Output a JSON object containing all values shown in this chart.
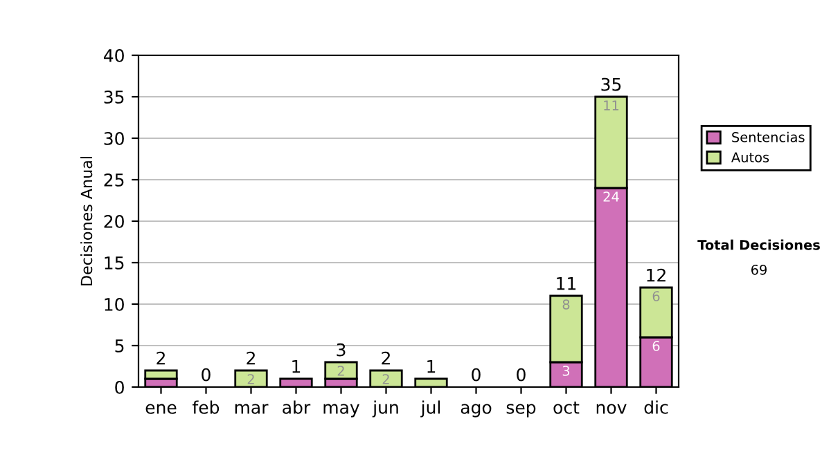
{
  "chart_data": {
    "type": "bar",
    "stacked": true,
    "ylabel": "Decisiones Anual",
    "categories": [
      "ene",
      "feb",
      "mar",
      "abr",
      "may",
      "jun",
      "jul",
      "ago",
      "sep",
      "oct",
      "nov",
      "dic"
    ],
    "series": [
      {
        "name": "Sentencias",
        "color": "#d070b8",
        "values": [
          1,
          0,
          0,
          1,
          1,
          0,
          0,
          0,
          0,
          3,
          24,
          6
        ],
        "value_labels": [
          null,
          null,
          null,
          null,
          null,
          null,
          null,
          null,
          null,
          "3",
          "24",
          "6"
        ]
      },
      {
        "name": "Autos",
        "color": "#cce696",
        "values": [
          1,
          0,
          2,
          0,
          2,
          2,
          1,
          0,
          0,
          8,
          11,
          6
        ],
        "value_labels": [
          null,
          null,
          "2",
          null,
          "2",
          "2",
          null,
          null,
          null,
          "8",
          "11",
          "6"
        ]
      }
    ],
    "totals": [
      "2",
      "0",
      "2",
      "1",
      "3",
      "2",
      "1",
      "0",
      "0",
      "11",
      "35",
      "12"
    ],
    "ylim": [
      0,
      40
    ],
    "yticks": [
      0,
      5,
      10,
      15,
      20,
      25,
      30,
      35,
      40
    ],
    "grid": "y",
    "legend": "right",
    "annotations": [
      "Total Decisiones",
      "69"
    ]
  }
}
